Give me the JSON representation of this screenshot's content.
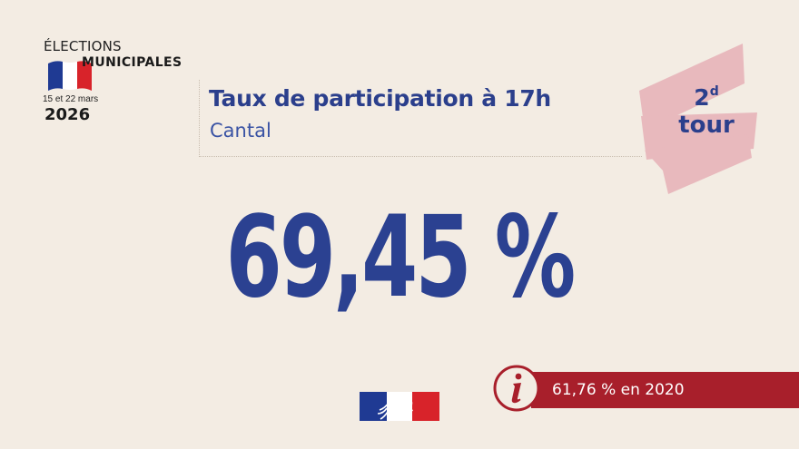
{
  "logo": {
    "elections": "ÉLECTIONS",
    "municipales": "MUNICIPALES",
    "dates": "15 et 22 mars",
    "year": "2026",
    "flag_colors": [
      "#1f3a93",
      "#ffffff",
      "#d8232a"
    ]
  },
  "header": {
    "title": "Taux de participation à 17h",
    "subtitle": "Cantal"
  },
  "tour_badge": {
    "round": "2",
    "round_suffix": "d",
    "word": "tour",
    "background_color": "#e8b9bd"
  },
  "main_value": "69,45 %",
  "info": {
    "icon": "info-icon",
    "text": "61,76 % en 2020",
    "background_color": "#a81f2b"
  },
  "footer": {
    "logo_icon": "marianne-logo-icon"
  }
}
